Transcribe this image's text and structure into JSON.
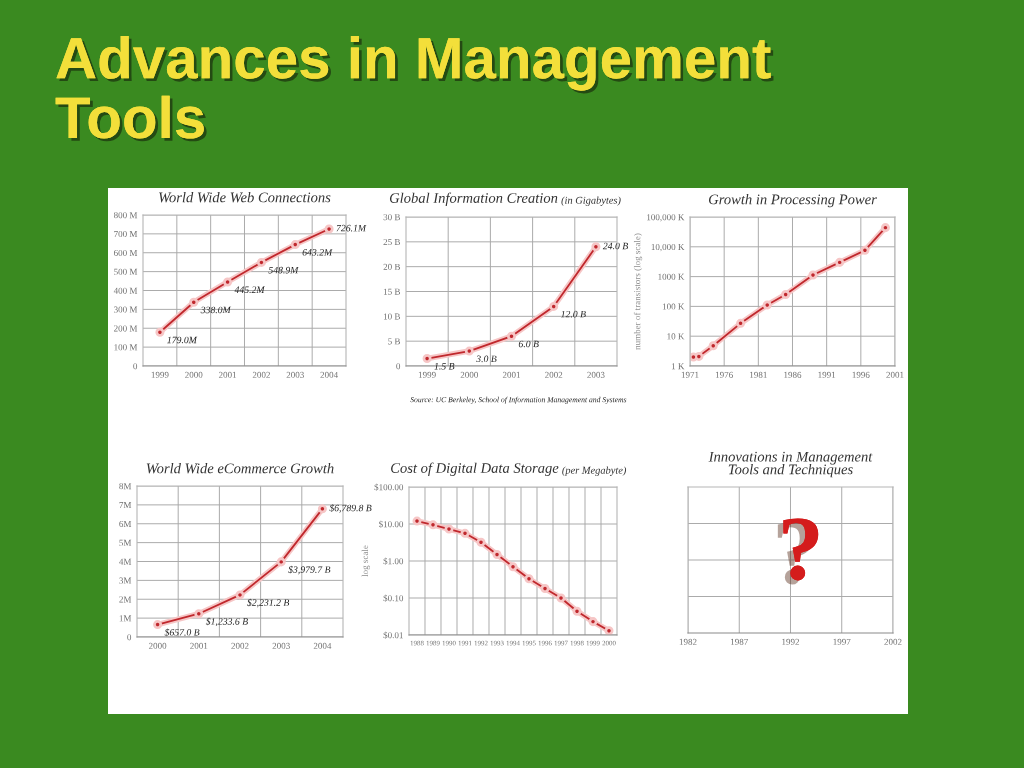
{
  "chart_data": [
    {
      "type": "other",
      "title": "Advances in Management\nTools"
    },
    {
      "type": "line",
      "title": "World Wide Web Connections",
      "categories": [
        "1999",
        "2000",
        "2001",
        "2002",
        "2003",
        "2004"
      ],
      "values": [
        179.0,
        338.0,
        445.2,
        548.9,
        643.2,
        726.1
      ],
      "value_labels": [
        "179.0M",
        "338.0M",
        "445.2M",
        "548.9M",
        "643.2M",
        "726.1M"
      ],
      "color": "#c0282d",
      "marker": "circle",
      "ylim": [
        0,
        800
      ],
      "yticks": [
        0,
        {
          "value": 100,
          "label": "100 M"
        },
        {
          "value": 200,
          "label": "200 M"
        },
        {
          "value": 300,
          "label": "300 M"
        },
        {
          "value": 400,
          "label": "400 M"
        },
        {
          "value": 500,
          "label": "500 M"
        },
        {
          "value": 600,
          "label": "600 M"
        },
        {
          "value": 700,
          "label": "700 M"
        },
        {
          "value": 800,
          "label": "800 M"
        }
      ],
      "grid": true
    },
    {
      "type": "line",
      "title": "Global Information Creation",
      "subtitle": "(in Gigabytes)",
      "categories": [
        "1999",
        "2000",
        "2001",
        "2002",
        "2003"
      ],
      "values": [
        1.5,
        3.0,
        6.0,
        12.0,
        24.0
      ],
      "value_labels": [
        "1.5 B",
        "3.0 B",
        "6.0 B",
        "12.0 B",
        "24.0 B"
      ],
      "color": "#c0282d",
      "marker": "circle",
      "ylim": [
        0,
        30
      ],
      "yticks": [
        0,
        {
          "value": 5,
          "label": "5 B"
        },
        {
          "value": 10,
          "label": "10 B"
        },
        {
          "value": 15,
          "label": "15 B"
        },
        {
          "value": 20,
          "label": "20 B"
        },
        {
          "value": 25,
          "label": "25 B"
        },
        {
          "value": 30,
          "label": "30 B"
        }
      ],
      "grid": true,
      "annotations": [
        "Source: UC Berkeley, School of Information Management and Systems"
      ]
    },
    {
      "type": "line",
      "title": "Growth in Processing Power",
      "ylabel": "number of transistors (log scale)",
      "x": [
        1971.5,
        1972.3,
        1974.4,
        1978.4,
        1982.3,
        1985.0,
        1989.0,
        1992.9,
        1996.6,
        1999.6
      ],
      "values": [
        2.0,
        2.1,
        4.8,
        27,
        112,
        252,
        1130,
        3000,
        7600,
        44000
      ],
      "color": "#c0282d",
      "marker": "circle",
      "log": true,
      "xlim": [
        1971,
        2001
      ],
      "xticks": [
        1971,
        1976,
        1981,
        1986,
        1991,
        1996,
        2001
      ],
      "ylim": [
        1,
        100000
      ],
      "yticks": [
        {
          "value": 1,
          "label": "1 K"
        },
        {
          "value": 10,
          "label": "10 K"
        },
        {
          "value": 100,
          "label": "100 K"
        },
        {
          "value": 1000,
          "label": "1000 K"
        },
        {
          "value": 10000,
          "label": "10,000 K"
        },
        {
          "value": 100000,
          "label": "100,000 K"
        }
      ],
      "grid": true
    },
    {
      "type": "line",
      "title": "World Wide eCommerce Growth",
      "categories": [
        "2000",
        "2001",
        "2002",
        "2003",
        "2004"
      ],
      "values": [
        0.657,
        1.234,
        2.231,
        3.98,
        6.79
      ],
      "color": "#c0282d",
      "marker": "circle",
      "ylim": [
        0,
        8
      ],
      "yticks": [
        0,
        {
          "value": 1,
          "label": "1M"
        },
        {
          "value": 2,
          "label": "2M"
        },
        {
          "value": 3,
          "label": "3M"
        },
        {
          "value": 4,
          "label": "4M"
        },
        {
          "value": 5,
          "label": "5M"
        },
        {
          "value": 6,
          "label": "6M"
        },
        {
          "value": 7,
          "label": "7M"
        },
        {
          "value": 8,
          "label": "8M"
        }
      ],
      "grid": true,
      "annotations": [
        {
          "text": "$657.0 B",
          "x": "2000",
          "y": 0.657
        },
        {
          "text": "$1,233.6 B",
          "x": "2001",
          "y": 1.234
        },
        {
          "text": "$2,231.2 B",
          "x": "2002",
          "y": 2.231
        },
        {
          "text": "$3,979.7 B",
          "x": "2003",
          "y": 3.98
        },
        {
          "text": "$6,789.8 B",
          "x": "2004",
          "y": 6.79
        }
      ]
    },
    {
      "type": "line",
      "title": "Cost of Digital Data Storage",
      "subtitle": "(per Megabyte)",
      "ylabel": "log scale",
      "categories": [
        "1988",
        "1989",
        "1990",
        "1991",
        "1992",
        "1993",
        "1994",
        "1995",
        "1996",
        "1997",
        "1998",
        "1999",
        "2000"
      ],
      "values": [
        12.0,
        9.5,
        7.3,
        5.6,
        3.2,
        1.5,
        0.7,
        0.33,
        0.18,
        0.1,
        0.044,
        0.023,
        0.013
      ],
      "color": "#c0282d",
      "marker": "circle",
      "log": true,
      "ylim": [
        0.01,
        100
      ],
      "yticks": [
        {
          "value": 0.01,
          "label": "$0.01"
        },
        {
          "value": 0.1,
          "label": "$0.10"
        },
        {
          "value": 1,
          "label": "$1.00"
        },
        {
          "value": 10,
          "label": "$10.00"
        },
        {
          "value": 100,
          "label": "$100.00"
        }
      ],
      "grid": true
    },
    {
      "type": "bar",
      "orientation": "horizontal",
      "title": "Innovations in Management\nTools and Techniques",
      "categories": [
        null,
        null,
        null,
        null
      ],
      "values": [
        null,
        null,
        null,
        null
      ],
      "xlim": [
        1982,
        2002
      ],
      "xticks": [
        1982,
        1987,
        1992,
        1997,
        2002
      ],
      "grid": true,
      "annotations": [
        "?"
      ]
    }
  ]
}
